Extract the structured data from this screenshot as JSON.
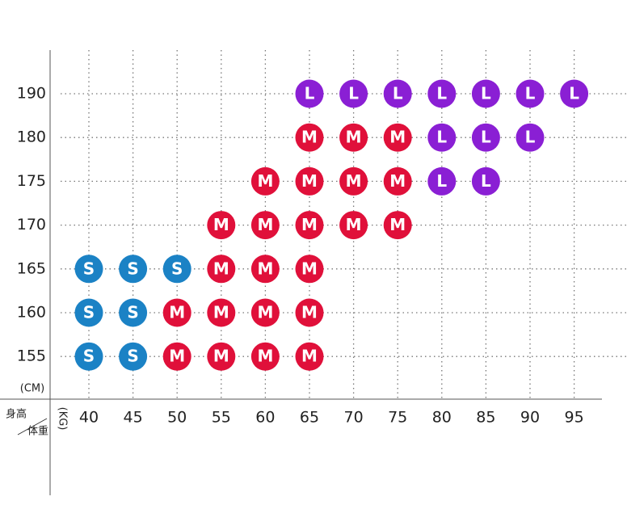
{
  "size_chart": {
    "weights": [
      40,
      45,
      50,
      55,
      60,
      65,
      70,
      75,
      80,
      85,
      90,
      95
    ],
    "heights": [
      190,
      180,
      175,
      170,
      165,
      160,
      155
    ],
    "height_unit": "(CM)",
    "weight_unit": "(KG)",
    "corner_top": "身高",
    "corner_bottom": "体重",
    "colors": {
      "S": "#1b82c5",
      "M": "#e0103a",
      "L": "#8a1fd4"
    },
    "rows": [
      [
        null,
        null,
        null,
        null,
        null,
        "L",
        "L",
        "L",
        "L",
        "L",
        "L",
        "L"
      ],
      [
        null,
        null,
        null,
        null,
        null,
        "M",
        "M",
        "M",
        "L",
        "L",
        "L",
        null
      ],
      [
        null,
        null,
        null,
        null,
        "M",
        "M",
        "M",
        "M",
        "L",
        "L",
        null,
        null
      ],
      [
        null,
        null,
        null,
        "M",
        "M",
        "M",
        "M",
        "M",
        null,
        null,
        null,
        null
      ],
      [
        "S",
        "S",
        "S",
        "M",
        "M",
        "M",
        null,
        null,
        null,
        null,
        null,
        null
      ],
      [
        "S",
        "S",
        "M",
        "M",
        "M",
        "M",
        null,
        null,
        null,
        null,
        null,
        null
      ],
      [
        "S",
        "S",
        "M",
        "M",
        "M",
        "M",
        null,
        null,
        null,
        null,
        null,
        null
      ]
    ]
  }
}
